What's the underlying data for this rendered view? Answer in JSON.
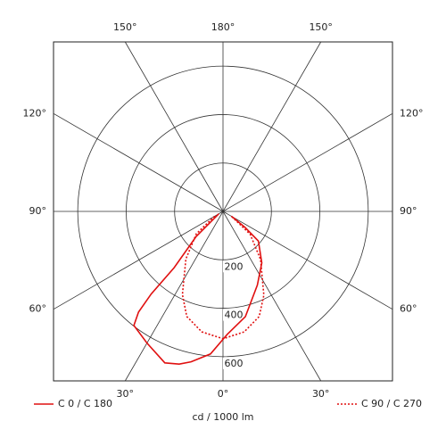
{
  "chart_data": {
    "type": "polar",
    "axis_label": "cd / 1000 lm",
    "rlim": [
      0,
      700
    ],
    "rticks": [
      200,
      400,
      600
    ],
    "angle_ticks": [
      {
        "value": -150,
        "label": "150°"
      },
      {
        "value": 180,
        "label": "180°"
      },
      {
        "value": 150,
        "label": "150°"
      },
      {
        "value": -120,
        "label": "120°"
      },
      {
        "value": 120,
        "label": "120°"
      },
      {
        "value": -90,
        "label": "90°"
      },
      {
        "value": 90,
        "label": "90°"
      },
      {
        "value": -60,
        "label": "60°"
      },
      {
        "value": 60,
        "label": "60°"
      },
      {
        "value": -30,
        "label": "30°"
      },
      {
        "value": 0,
        "label": "0°"
      },
      {
        "value": 30,
        "label": "30°"
      }
    ],
    "series": [
      {
        "name": "C 0 / C 180",
        "color": "#e01010",
        "style": "solid",
        "angles": [
          -60,
          -47,
          -41,
          -41,
          -40,
          -38,
          -30,
          -21,
          -16,
          -12,
          -5,
          2,
          12,
          25,
          37,
          50,
          54,
          60
        ],
        "values": [
          20,
          151,
          308,
          452,
          543,
          598,
          628,
          670,
          656,
          635,
          591,
          508,
          444,
          336,
          266,
          191,
          113,
          40
        ]
      },
      {
        "name": "C 90 / C 270",
        "color": "#e01010",
        "style": "dotted",
        "angles": [
          -60,
          -50,
          -38,
          -26,
          -19,
          -10,
          0,
          10,
          19,
          26,
          38,
          50,
          60
        ],
        "values": [
          40,
          144,
          249,
          382,
          459,
          505,
          526,
          505,
          459,
          385,
          252,
          146,
          40
        ]
      }
    ]
  }
}
